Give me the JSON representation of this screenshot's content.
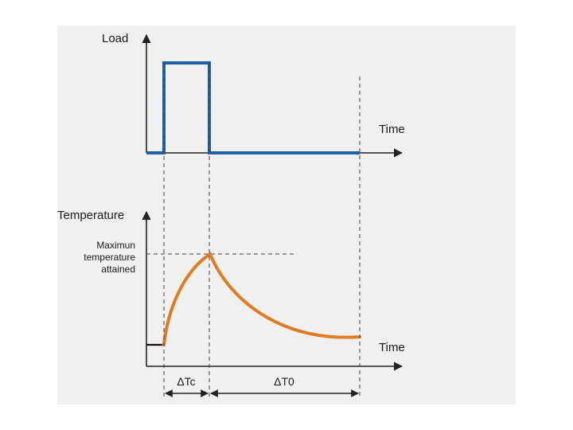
{
  "load_chart": {
    "y_axis_label": "Load",
    "x_axis_label": "Time"
  },
  "temperature_chart": {
    "y_axis_label": "Temperature",
    "x_axis_label": "Time",
    "max_label_lines": [
      "Maximun",
      "temperature",
      "attained"
    ]
  },
  "intervals": {
    "heating": "ΔTc",
    "cooling": "ΔT0"
  },
  "colors": {
    "panel_background": "#f0f0f0",
    "load_line": "#1f5fa6",
    "temperature_curve": "#e07b22",
    "axis": "#222222",
    "guide": "#444444"
  }
}
